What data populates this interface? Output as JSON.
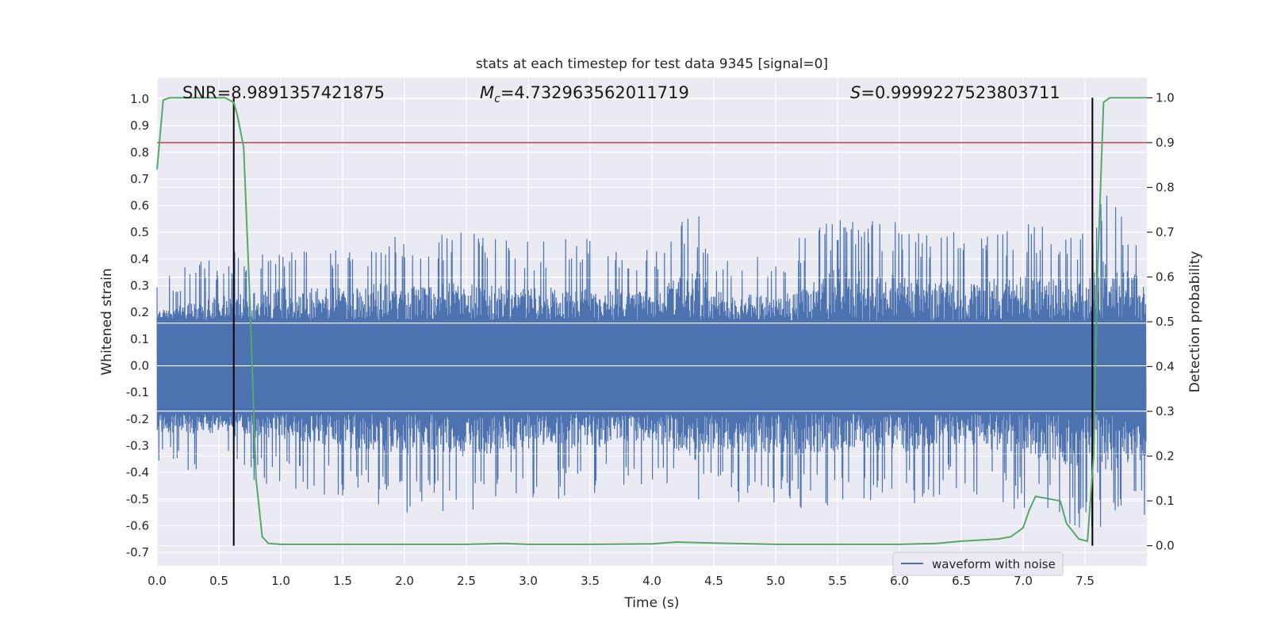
{
  "chart_data": {
    "type": "line",
    "title": "stats at each timestep for test data 9345 [signal=0]",
    "xlabel": "Time (s)",
    "ylabel": "Whitened strain",
    "y2label": "Detection probability",
    "xlim": [
      0.0,
      8.0
    ],
    "ylim": [
      -0.75,
      1.08
    ],
    "y2lim": [
      -0.045,
      1.045
    ],
    "xticks": [
      "0.0",
      "0.5",
      "1.0",
      "1.5",
      "2.0",
      "2.5",
      "3.0",
      "3.5",
      "4.0",
      "4.5",
      "5.0",
      "5.5",
      "6.0",
      "6.5",
      "7.0",
      "7.5"
    ],
    "yticks": [
      "-0.7",
      "-0.6",
      "-0.5",
      "-0.4",
      "-0.3",
      "-0.2",
      "-0.1",
      "0.0",
      "0.1",
      "0.2",
      "0.3",
      "0.4",
      "0.5",
      "0.6",
      "0.7",
      "0.8",
      "0.9",
      "1.0"
    ],
    "y2ticks": [
      "0.0",
      "0.1",
      "0.2",
      "0.3",
      "0.4",
      "0.5",
      "0.6",
      "0.7",
      "0.8",
      "0.9",
      "1.0"
    ],
    "grid": true,
    "annotations": {
      "snr": "SNR=8.9891357421875",
      "mc_symbol": "M",
      "mc_sub": "c",
      "mc_value": "=4.732963562011719",
      "s_symbol": "S",
      "s_value": "=0.9999227523803711"
    },
    "legend": {
      "placement": "lower-right",
      "entries": [
        "waveform with noise"
      ]
    },
    "colors": {
      "waveform": "#4c72b0",
      "probability": "#55a868",
      "threshold": "#c44e52",
      "markers": "#000000",
      "background": "#eaeaf2",
      "grid": "#ffffff"
    },
    "threshold": {
      "axis": "right",
      "value": 0.9
    },
    "vertical_markers": [
      0.62,
      7.56
    ],
    "waveform_envelope": {
      "x": [
        0.0,
        0.5,
        1.0,
        1.5,
        2.0,
        2.5,
        3.0,
        3.5,
        4.0,
        4.35,
        4.5,
        5.0,
        5.5,
        6.0,
        6.5,
        7.0,
        7.5,
        7.65,
        8.0
      ],
      "upper": [
        0.33,
        0.42,
        0.48,
        0.47,
        0.52,
        0.5,
        0.47,
        0.48,
        0.45,
        0.6,
        0.45,
        0.42,
        0.59,
        0.55,
        0.5,
        0.55,
        0.5,
        0.65,
        0.52
      ],
      "lower": [
        -0.4,
        -0.42,
        -0.45,
        -0.5,
        -0.55,
        -0.55,
        -0.5,
        -0.5,
        -0.45,
        -0.57,
        -0.5,
        -0.55,
        -0.52,
        -0.53,
        -0.47,
        -0.55,
        -0.62,
        -0.67,
        -0.56
      ]
    },
    "probability_series": {
      "name": "",
      "x": [
        0.0,
        0.05,
        0.1,
        0.2,
        0.3,
        0.4,
        0.5,
        0.55,
        0.62,
        0.65,
        0.7,
        0.75,
        0.8,
        0.85,
        0.9,
        1.0,
        1.5,
        2.0,
        2.5,
        2.8,
        3.0,
        3.5,
        4.0,
        4.2,
        4.5,
        5.0,
        5.5,
        6.0,
        6.3,
        6.5,
        6.8,
        6.9,
        7.0,
        7.05,
        7.1,
        7.2,
        7.3,
        7.35,
        7.45,
        7.52,
        7.57,
        7.6,
        7.65,
        7.7,
        7.8,
        8.0
      ],
      "y": [
        0.84,
        0.995,
        1.0,
        1.0,
        1.0,
        1.0,
        1.0,
        1.0,
        0.99,
        0.96,
        0.89,
        0.55,
        0.15,
        0.02,
        0.005,
        0.003,
        0.003,
        0.003,
        0.003,
        0.005,
        0.003,
        0.003,
        0.004,
        0.008,
        0.006,
        0.003,
        0.003,
        0.003,
        0.005,
        0.01,
        0.015,
        0.02,
        0.04,
        0.08,
        0.11,
        0.105,
        0.1,
        0.05,
        0.015,
        0.01,
        0.2,
        0.6,
        0.99,
        1.0,
        1.0,
        1.0
      ]
    }
  }
}
